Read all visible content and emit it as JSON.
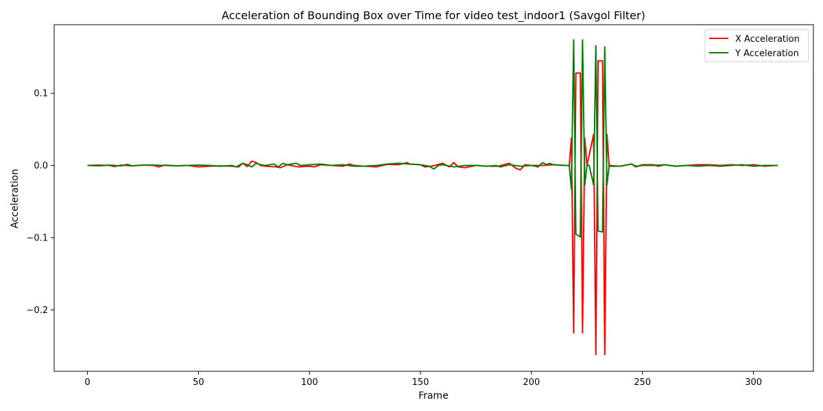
{
  "chart_data": {
    "type": "line",
    "title": "Acceleration of Bounding Box over Time for video test_indoor1 (Savgol Filter)",
    "xlabel": "Frame",
    "ylabel": "Acceleration",
    "xlim": [
      -15,
      327
    ],
    "ylim": [
      -0.285,
      0.195
    ],
    "xticks": [
      0,
      50,
      100,
      150,
      200,
      250,
      300
    ],
    "xtick_labels": [
      "0",
      "50",
      "100",
      "150",
      "200",
      "250",
      "300"
    ],
    "yticks": [
      -0.2,
      -0.1,
      0.0,
      0.1
    ],
    "ytick_labels": [
      "−0.2",
      "−0.1",
      "0.0",
      "0.1"
    ],
    "grid": false,
    "legend_position": "top-right",
    "series": [
      {
        "name": "X Acceleration",
        "color": "#ff0000",
        "points": [
          [
            0,
            0
          ],
          [
            5,
            0.0005
          ],
          [
            10,
            0
          ],
          [
            12,
            -0.0015
          ],
          [
            15,
            0.0005
          ],
          [
            20,
            -0.0005
          ],
          [
            25,
            0.0005
          ],
          [
            30,
            0
          ],
          [
            32,
            -0.002
          ],
          [
            35,
            0.0005
          ],
          [
            40,
            -0.0005
          ],
          [
            45,
            0
          ],
          [
            50,
            -0.002
          ],
          [
            55,
            -0.001
          ],
          [
            60,
            -0.0005
          ],
          [
            65,
            -0.001
          ],
          [
            68,
            -0.002
          ],
          [
            70,
            0.003
          ],
          [
            72,
            -0.0015
          ],
          [
            74,
            0.006
          ],
          [
            76,
            0.004
          ],
          [
            78,
            0
          ],
          [
            80,
            -0.001
          ],
          [
            85,
            -0.002
          ],
          [
            87,
            -0.003
          ],
          [
            90,
            0.001
          ],
          [
            95,
            -0.002
          ],
          [
            100,
            -0.001
          ],
          [
            102,
            -0.002
          ],
          [
            105,
            0.001
          ],
          [
            110,
            0
          ],
          [
            115,
            -0.001
          ],
          [
            118,
            0.002
          ],
          [
            120,
            0
          ],
          [
            125,
            -0.001
          ],
          [
            130,
            -0.002
          ],
          [
            135,
            0.0015
          ],
          [
            140,
            0.001
          ],
          [
            144,
            0.004
          ],
          [
            145,
            0.002
          ],
          [
            150,
            0.001
          ],
          [
            152,
            -0.002
          ],
          [
            155,
            -0.001
          ],
          [
            160,
            0.003
          ],
          [
            163,
            -0.002
          ],
          [
            165,
            0.004
          ],
          [
            167,
            -0.002
          ],
          [
            170,
            -0.003
          ],
          [
            175,
            0
          ],
          [
            180,
            -0.001
          ],
          [
            185,
            -0.001
          ],
          [
            190,
            0.003
          ],
          [
            193,
            -0.004
          ],
          [
            195,
            -0.006
          ],
          [
            197,
            0.001
          ],
          [
            200,
            0
          ],
          [
            205,
            0
          ],
          [
            210,
            0.001
          ],
          [
            215,
            0
          ],
          [
            217,
            0
          ],
          [
            218,
            0.038
          ],
          [
            219,
            -0.232
          ],
          [
            220,
            0.128
          ],
          [
            222,
            0.128
          ],
          [
            223,
            -0.232
          ],
          [
            224,
            0.038
          ],
          [
            225,
            0
          ],
          [
            228,
            0.043
          ],
          [
            229,
            -0.262
          ],
          [
            230,
            0.145
          ],
          [
            232,
            0.145
          ],
          [
            233,
            -0.262
          ],
          [
            234,
            0.043
          ],
          [
            235,
            -0.001
          ],
          [
            240,
            -0.001
          ],
          [
            245,
            0.002
          ],
          [
            247,
            -0.002
          ],
          [
            250,
            0.001
          ],
          [
            255,
            0.001
          ],
          [
            257,
            -0.001
          ],
          [
            260,
            0.001
          ],
          [
            265,
            -0.001
          ],
          [
            270,
            0
          ],
          [
            275,
            0.001
          ],
          [
            280,
            0.001
          ],
          [
            285,
            0
          ],
          [
            290,
            0.001
          ],
          [
            295,
            0
          ],
          [
            300,
            0.001
          ],
          [
            305,
            -0.001
          ],
          [
            310,
            0
          ],
          [
            311,
            0
          ]
        ]
      },
      {
        "name": "Y Acceleration",
        "color": "#008000",
        "points": [
          [
            0,
            0
          ],
          [
            5,
            -0.0005
          ],
          [
            10,
            0.0005
          ],
          [
            15,
            -0.0005
          ],
          [
            18,
            0.0015
          ],
          [
            20,
            -0.0005
          ],
          [
            25,
            0.0005
          ],
          [
            30,
            0.0005
          ],
          [
            35,
            0
          ],
          [
            40,
            -0.0005
          ],
          [
            45,
            0
          ],
          [
            50,
            0.0005
          ],
          [
            55,
            0
          ],
          [
            60,
            -0.001
          ],
          [
            65,
            0
          ],
          [
            67,
            -0.002
          ],
          [
            70,
            0.003
          ],
          [
            72,
            0.001
          ],
          [
            74,
            -0.002
          ],
          [
            76,
            0.003
          ],
          [
            78,
            0.001
          ],
          [
            80,
            0
          ],
          [
            84,
            0.002
          ],
          [
            86,
            -0.002
          ],
          [
            88,
            0.003
          ],
          [
            90,
            0.001
          ],
          [
            94,
            0.003
          ],
          [
            96,
            0
          ],
          [
            100,
            0.001
          ],
          [
            105,
            0.002
          ],
          [
            110,
            0
          ],
          [
            115,
            0.001
          ],
          [
            120,
            -0.001
          ],
          [
            125,
            -0.001
          ],
          [
            130,
            0
          ],
          [
            135,
            0.002
          ],
          [
            140,
            0.003
          ],
          [
            145,
            0.002
          ],
          [
            150,
            0.001
          ],
          [
            154,
            -0.001
          ],
          [
            156,
            -0.005
          ],
          [
            158,
            0
          ],
          [
            160,
            0.001
          ],
          [
            165,
            -0.002
          ],
          [
            170,
            0
          ],
          [
            175,
            0
          ],
          [
            180,
            -0.001
          ],
          [
            184,
            0
          ],
          [
            186,
            -0.002
          ],
          [
            190,
            0.001
          ],
          [
            195,
            -0.001
          ],
          [
            200,
            0
          ],
          [
            203,
            -0.002
          ],
          [
            205,
            0.004
          ],
          [
            207,
            0.001
          ],
          [
            208,
            0.003
          ],
          [
            210,
            0.001
          ],
          [
            215,
            0
          ],
          [
            217,
            0
          ],
          [
            218,
            -0.033
          ],
          [
            219,
            0.174
          ],
          [
            220,
            -0.095
          ],
          [
            222,
            -0.099
          ],
          [
            223,
            0.174
          ],
          [
            224,
            -0.027
          ],
          [
            225,
            0
          ],
          [
            226,
            0
          ],
          [
            228,
            -0.027
          ],
          [
            229,
            0.166
          ],
          [
            230,
            -0.091
          ],
          [
            232,
            -0.092
          ],
          [
            233,
            0.164
          ],
          [
            234,
            -0.027
          ],
          [
            235,
            0
          ],
          [
            240,
            -0.001
          ],
          [
            245,
            0.002
          ],
          [
            247,
            -0.001
          ],
          [
            250,
            0
          ],
          [
            255,
            0
          ],
          [
            260,
            0.001
          ],
          [
            265,
            -0.001
          ],
          [
            270,
            0
          ],
          [
            275,
            -0.001
          ],
          [
            280,
            0
          ],
          [
            285,
            -0.001
          ],
          [
            290,
            0
          ],
          [
            295,
            0.001
          ],
          [
            300,
            -0.001
          ],
          [
            305,
            0
          ],
          [
            310,
            0
          ],
          [
            311,
            0
          ]
        ]
      }
    ]
  }
}
